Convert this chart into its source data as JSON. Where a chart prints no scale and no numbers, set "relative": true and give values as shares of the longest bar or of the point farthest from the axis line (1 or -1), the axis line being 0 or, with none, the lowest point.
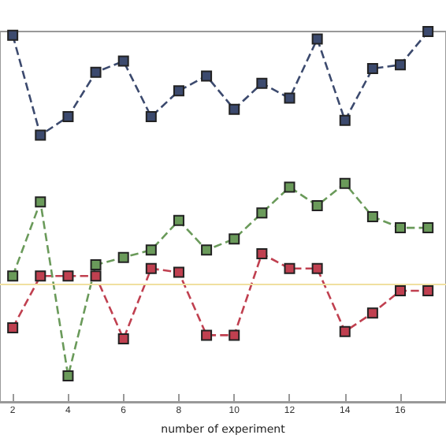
{
  "chart_data": {
    "type": "line",
    "xlabel": "number of experiment",
    "relative": true,
    "x": [
      2,
      3,
      4,
      5,
      6,
      7,
      8,
      9,
      10,
      11,
      12,
      13,
      14,
      15,
      16,
      17
    ],
    "xlim": [
      1.54,
      17.65
    ],
    "xticks": [
      2,
      4,
      6,
      8,
      10,
      12,
      14,
      16
    ],
    "grid": false,
    "marker": "square",
    "line_style": "dashed",
    "series": [
      {
        "color": "#3c4a6e",
        "values": [
          0.99,
          0.72,
          0.77,
          0.89,
          0.92,
          0.77,
          0.84,
          0.88,
          0.79,
          0.86,
          0.82,
          0.98,
          0.76,
          0.9,
          0.91,
          1
        ]
      },
      {
        "color": "#6a9a5a",
        "values": [
          0.34,
          0.54,
          0.07,
          0.37,
          0.39,
          0.41,
          0.49,
          0.41,
          0.44,
          0.51,
          0.58,
          0.53,
          0.59,
          0.5,
          0.47,
          0.47
        ]
      },
      {
        "color": "#c04050",
        "values": [
          0.2,
          0.34,
          0.34,
          0.34,
          0.17,
          0.36,
          0.35,
          0.18,
          0.18,
          0.4,
          0.36,
          0.36,
          0.19,
          0.24,
          0.3,
          0.3
        ]
      }
    ],
    "ref_lines": [
      {
        "axis": "y",
        "value": 0.32,
        "color": "#f0e0a0"
      }
    ]
  }
}
